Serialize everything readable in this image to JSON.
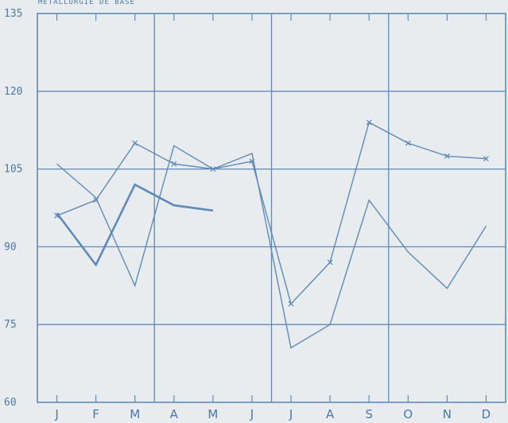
{
  "chart_data": {
    "type": "line",
    "title": "METALLURGIE DE BASE",
    "xlabel": "",
    "ylabel": "",
    "categories": [
      "J",
      "F",
      "M",
      "A",
      "M",
      "J",
      "J",
      "A",
      "S",
      "O",
      "N",
      "D"
    ],
    "ylim": [
      60,
      135
    ],
    "yticks": [
      60,
      75,
      90,
      105,
      120,
      135
    ],
    "grid": true,
    "legend": "none",
    "series": [
      {
        "values": [
          106,
          99.5,
          82.5,
          109.5,
          105,
          108,
          70.5,
          75,
          99,
          89,
          82,
          94
        ],
        "marker": "none",
        "width": 1.4
      },
      {
        "values": [
          96,
          99,
          110,
          106,
          105,
          106.5,
          79,
          87,
          114,
          110,
          107.5,
          107
        ],
        "marker": "x",
        "width": 1.4
      },
      {
        "values": [
          96.5,
          86.5,
          102,
          98,
          97,
          null,
          null,
          null,
          null,
          null,
          null,
          null
        ],
        "marker": "none",
        "width": 2.6
      }
    ],
    "colors": {
      "line": "#5d8ab8",
      "grid": "#5d8ab8",
      "text": "#4a78a8",
      "background": "#e9ecef"
    }
  }
}
